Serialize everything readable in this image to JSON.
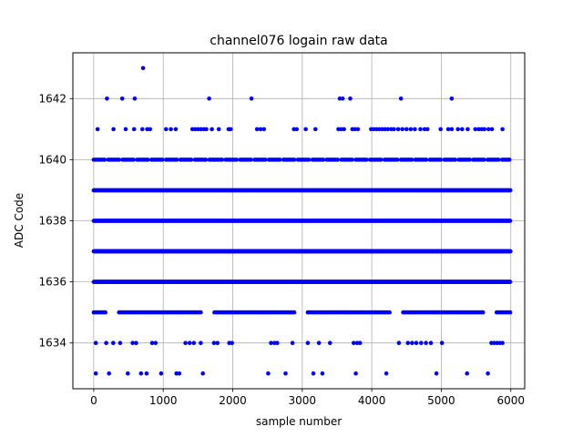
{
  "chart_data": {
    "type": "scatter",
    "title": "channel076 logain raw data",
    "xlabel": "sample number",
    "ylabel": "ADC Code",
    "xlim": [
      -300,
      6200
    ],
    "ylim": [
      1632.5,
      1643.5
    ],
    "xticks": [
      0,
      1000,
      2000,
      3000,
      4000,
      5000,
      6000
    ],
    "yticks": [
      1634,
      1636,
      1638,
      1640,
      1642
    ],
    "grid": true,
    "marker_color": "#0000ff",
    "n_samples": 6000,
    "dense_levels": [
      1635,
      1636,
      1637,
      1638,
      1639,
      1640
    ],
    "sparse_points": {
      "1643": [
        710
      ],
      "1642": [
        190,
        410,
        590,
        1660,
        2270,
        3540,
        3580,
        3690,
        4420,
        5150
      ],
      "1641": [
        55,
        285,
        460,
        580,
        700,
        770,
        810,
        1040,
        1110,
        1180,
        1420,
        1460,
        1500,
        1540,
        1580,
        1620,
        1700,
        1800,
        1940,
        1970,
        2350,
        2400,
        2450,
        2880,
        2920,
        3050,
        3190,
        3520,
        3560,
        3600,
        3720,
        3760,
        3800,
        3990,
        4030,
        4070,
        4110,
        4150,
        4190,
        4230,
        4280,
        4320,
        4380,
        4440,
        4500,
        4560,
        4620,
        4700,
        4760,
        4800,
        4990,
        5100,
        5150,
        5240,
        5300,
        5380,
        5490,
        5540,
        5580,
        5620,
        5680,
        5730,
        5880
      ],
      "1634": [
        30,
        180,
        280,
        380,
        560,
        610,
        840,
        890,
        1320,
        1380,
        1440,
        1540,
        1730,
        1780,
        1950,
        1990,
        2550,
        2600,
        2640,
        2860,
        3080,
        3240,
        3400,
        3740,
        3790,
        3830,
        4390,
        4520,
        4580,
        4640,
        4710,
        4780,
        4850,
        5010,
        5720,
        5760,
        5800,
        5840,
        5880
      ],
      "1633": [
        30,
        220,
        490,
        680,
        760,
        970,
        1190,
        1230,
        1570,
        2510,
        2760,
        3160,
        3290,
        3770,
        4210,
        4930,
        5370,
        5670
      ]
    }
  }
}
